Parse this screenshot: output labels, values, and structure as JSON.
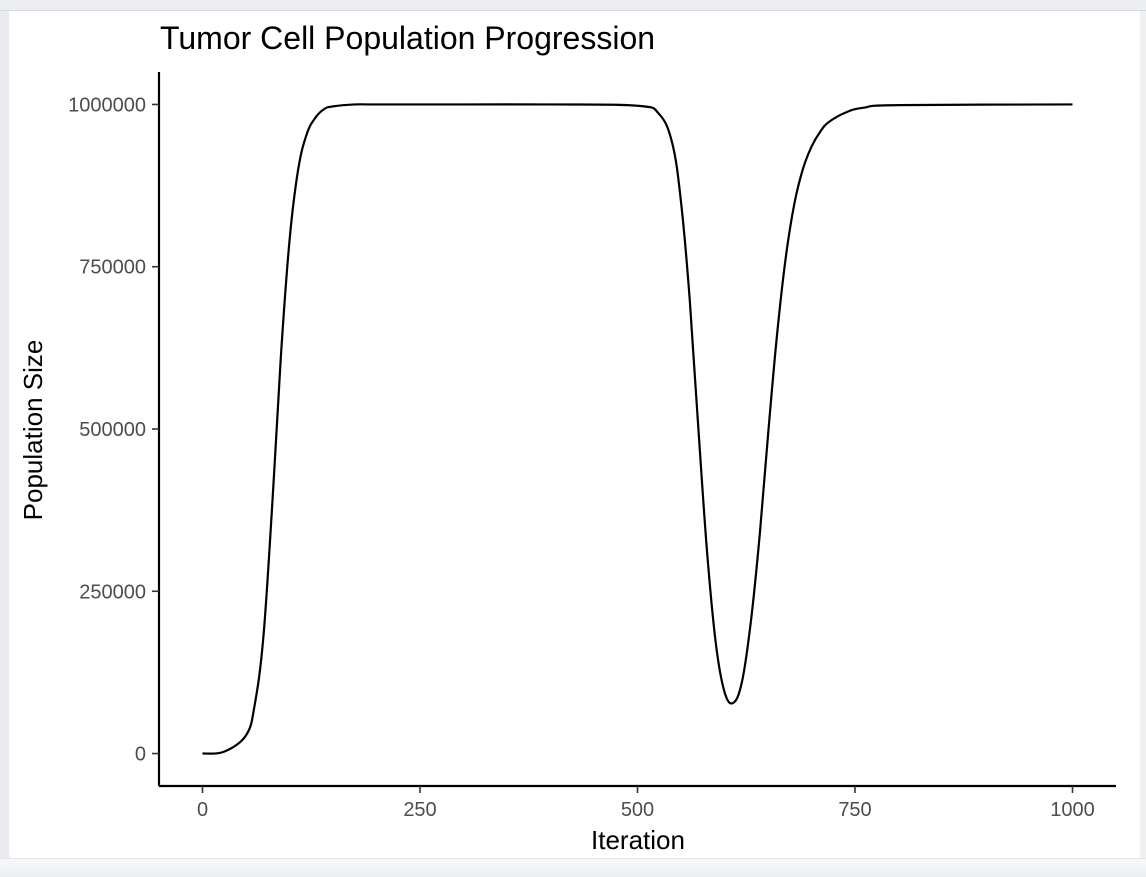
{
  "chart_data": {
    "type": "line",
    "title": "Tumor Cell Population Progression",
    "xlabel": "Iteration",
    "ylabel": "Population Size",
    "xlim": [
      -50,
      1050
    ],
    "ylim": [
      -50000,
      1050000
    ],
    "xticks": [
      0,
      250,
      500,
      750,
      1000
    ],
    "xtick_labels": [
      "0",
      "250",
      "500",
      "750",
      "1000"
    ],
    "yticks": [
      0,
      250000,
      500000,
      750000,
      1000000
    ],
    "ytick_labels": [
      "0",
      "250000",
      "500000",
      "750000",
      "1000000"
    ],
    "grid": false,
    "series": [
      {
        "color": "#000000",
        "x": [
          0,
          25,
          50,
          60,
          70,
          80,
          90,
          100,
          110,
          120,
          130,
          140,
          150,
          175,
          200,
          300,
          400,
          500,
          525,
          540,
          550,
          560,
          570,
          580,
          590,
          600,
          610,
          620,
          630,
          640,
          650,
          660,
          670,
          680,
          690,
          700,
          710,
          720,
          740,
          760,
          800,
          1000
        ],
        "y": [
          0,
          3000,
          28000,
          75000,
          180000,
          380000,
          610000,
          790000,
          900000,
          955000,
          980000,
          993000,
          997000,
          1000000,
          1000000,
          1000000,
          1000000,
          998000,
          985000,
          940000,
          850000,
          700000,
          500000,
          310000,
          170000,
          95000,
          78000,
          110000,
          200000,
          330000,
          490000,
          640000,
          760000,
          845000,
          900000,
          935000,
          958000,
          973000,
          988000,
          995000,
          999000,
          1000000
        ]
      }
    ]
  }
}
